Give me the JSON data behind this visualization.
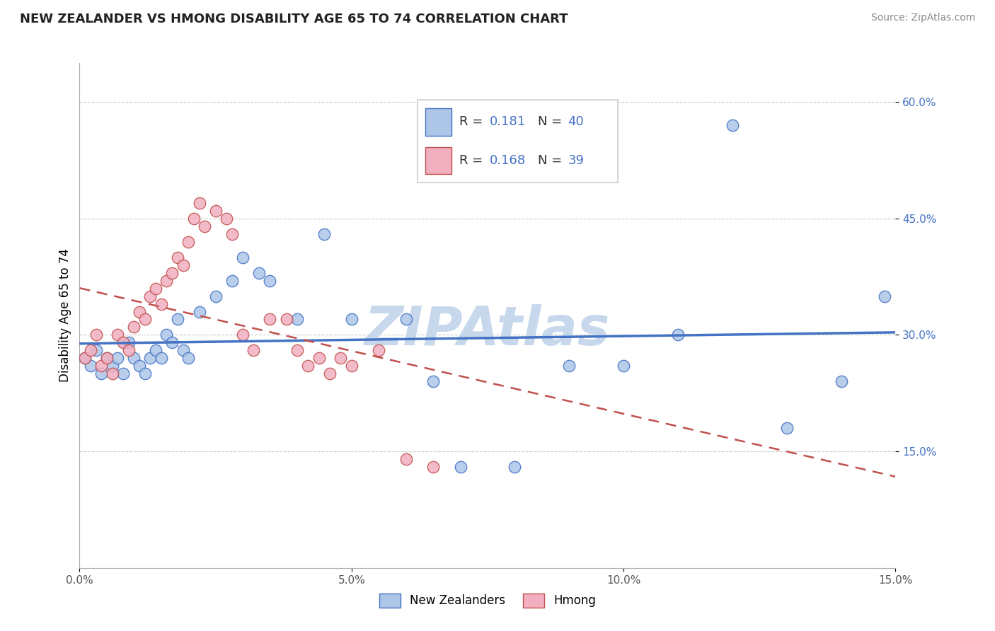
{
  "title": "NEW ZEALANDER VS HMONG DISABILITY AGE 65 TO 74 CORRELATION CHART",
  "source": "Source: ZipAtlas.com",
  "ylabel": "Disability Age 65 to 74",
  "xlim": [
    0.0,
    0.15
  ],
  "ylim": [
    0.0,
    0.65
  ],
  "xticks": [
    0.0,
    0.05,
    0.1,
    0.15
  ],
  "xtick_labels": [
    "0.0%",
    "5.0%",
    "10.0%",
    "15.0%"
  ],
  "yticks": [
    0.15,
    0.3,
    0.45,
    0.6
  ],
  "ytick_labels": [
    "15.0%",
    "30.0%",
    "45.0%",
    "60.0%"
  ],
  "R_nz": 0.181,
  "N_nz": 40,
  "R_hmong": 0.168,
  "N_hmong": 39,
  "color_nz": "#adc6e8",
  "color_hmong": "#f2afc0",
  "line_color_nz": "#4472c4",
  "line_color_hmong": "#c0504d",
  "watermark": "ZIPAtlas",
  "watermark_color": "#c8d8ec",
  "legend_labels": [
    "New Zealanders",
    "Hmong"
  ],
  "nz_x": [
    0.001,
    0.002,
    0.003,
    0.004,
    0.005,
    0.006,
    0.007,
    0.008,
    0.009,
    0.01,
    0.011,
    0.012,
    0.013,
    0.014,
    0.015,
    0.016,
    0.017,
    0.018,
    0.019,
    0.02,
    0.022,
    0.025,
    0.028,
    0.03,
    0.033,
    0.035,
    0.04,
    0.045,
    0.05,
    0.06,
    0.065,
    0.07,
    0.08,
    0.09,
    0.1,
    0.11,
    0.12,
    0.13,
    0.14,
    0.148
  ],
  "nz_y": [
    0.27,
    0.26,
    0.28,
    0.25,
    0.27,
    0.26,
    0.27,
    0.25,
    0.29,
    0.27,
    0.26,
    0.25,
    0.27,
    0.28,
    0.27,
    0.3,
    0.29,
    0.32,
    0.28,
    0.27,
    0.33,
    0.35,
    0.37,
    0.4,
    0.38,
    0.37,
    0.32,
    0.43,
    0.32,
    0.32,
    0.24,
    0.13,
    0.13,
    0.26,
    0.26,
    0.3,
    0.57,
    0.18,
    0.24,
    0.35
  ],
  "hmong_x": [
    0.001,
    0.002,
    0.003,
    0.004,
    0.005,
    0.006,
    0.007,
    0.008,
    0.009,
    0.01,
    0.011,
    0.012,
    0.013,
    0.014,
    0.015,
    0.016,
    0.017,
    0.018,
    0.019,
    0.02,
    0.021,
    0.022,
    0.023,
    0.025,
    0.027,
    0.028,
    0.03,
    0.032,
    0.035,
    0.038,
    0.04,
    0.042,
    0.044,
    0.046,
    0.048,
    0.05,
    0.055,
    0.06,
    0.065
  ],
  "hmong_y": [
    0.27,
    0.28,
    0.3,
    0.26,
    0.27,
    0.25,
    0.3,
    0.29,
    0.28,
    0.31,
    0.33,
    0.32,
    0.35,
    0.36,
    0.34,
    0.37,
    0.38,
    0.4,
    0.39,
    0.42,
    0.45,
    0.47,
    0.44,
    0.46,
    0.45,
    0.43,
    0.3,
    0.28,
    0.32,
    0.32,
    0.28,
    0.26,
    0.27,
    0.25,
    0.27,
    0.26,
    0.28,
    0.14,
    0.13
  ]
}
